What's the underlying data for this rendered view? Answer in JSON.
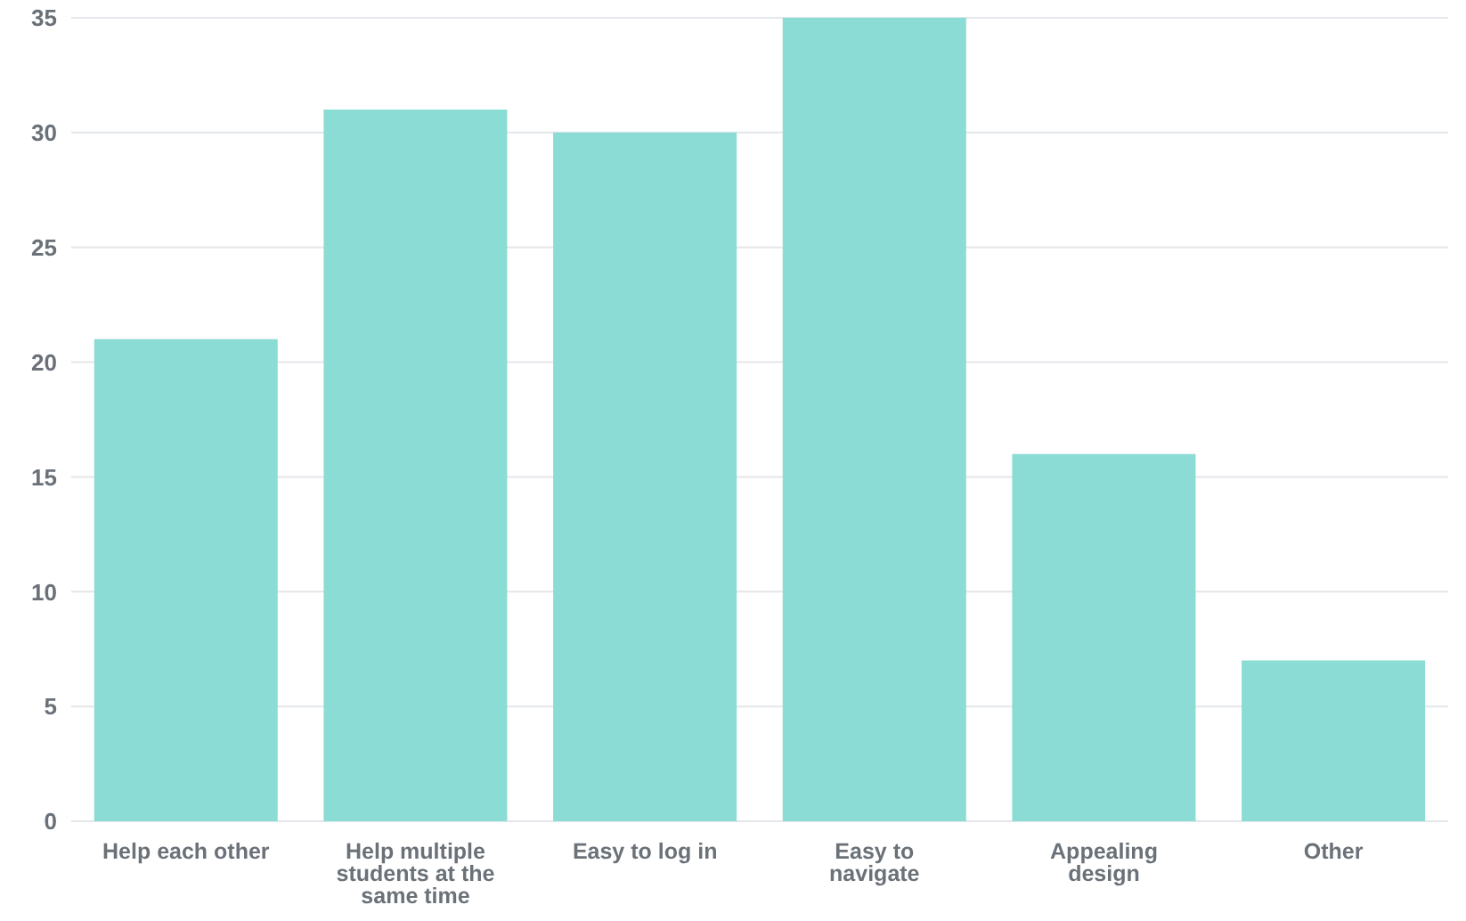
{
  "chart_data": {
    "type": "bar",
    "categories": [
      "Help each other",
      "Help multiple students at the same time",
      "Easy to log in",
      "Easy to navigate",
      "Appealing design",
      "Other"
    ],
    "values": [
      21,
      31,
      30,
      35,
      16,
      7
    ],
    "color": "#8adcd4",
    "ylim": [
      0,
      35
    ],
    "yticks": [
      0,
      5,
      10,
      15,
      20,
      25,
      30,
      35
    ],
    "grid": "y"
  }
}
